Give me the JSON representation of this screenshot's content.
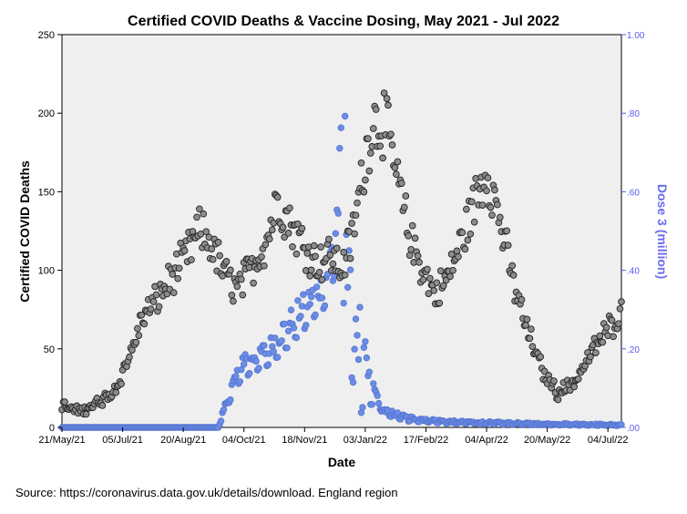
{
  "chart_data": {
    "type": "scatter",
    "title": "Certified COVID Deaths & Vaccine Dosing, May 2021 - Jul 2022",
    "xlabel": "Date",
    "ylabel": "Certified COVID Deaths",
    "y2label": "Dose 3 (million)",
    "ylim": [
      0,
      250
    ],
    "y2lim": [
      0,
      1.0
    ],
    "y_ticks": [
      "0",
      "50",
      "100",
      "150",
      "200",
      "250"
    ],
    "y2_ticks": [
      ".00",
      ".20",
      ".40",
      ".60",
      ".80",
      "1.00"
    ],
    "x_ticks": [
      "21/May/21",
      "05/Jul/21",
      "20/Aug/21",
      "04/Oct/21",
      "18/Nov/21",
      "03/Jan/22",
      "17/Feb/22",
      "04/Apr/22",
      "20/May/22",
      "04/Jul/22"
    ],
    "x_start": "2021-05-21",
    "x_end": "2022-07-10",
    "grid": false,
    "background": "#efefef",
    "deaths_color": "#8c8c8c",
    "dose_color": "#6b8de6",
    "series": [
      {
        "name": "Certified COVID Deaths",
        "axis": "left",
        "anchors": [
          [
            "2021-05-21",
            14
          ],
          [
            "2021-06-01",
            10
          ],
          [
            "2021-06-10",
            13
          ],
          [
            "2021-06-20",
            17
          ],
          [
            "2021-06-30",
            25
          ],
          [
            "2021-07-10",
            45
          ],
          [
            "2021-07-20",
            70
          ],
          [
            "2021-07-31",
            82
          ],
          [
            "2021-08-10",
            95
          ],
          [
            "2021-08-20",
            107
          ],
          [
            "2021-08-31",
            125
          ],
          [
            "2021-09-08",
            118
          ],
          [
            "2021-09-18",
            98
          ],
          [
            "2021-09-28",
            88
          ],
          [
            "2021-10-08",
            100
          ],
          [
            "2021-10-20",
            120
          ],
          [
            "2021-10-28",
            145
          ],
          [
            "2021-11-05",
            132
          ],
          [
            "2021-11-15",
            118
          ],
          [
            "2021-11-26",
            105
          ],
          [
            "2021-12-06",
            110
          ],
          [
            "2021-12-14",
            100
          ],
          [
            "2021-12-22",
            120
          ],
          [
            "2021-12-30",
            160
          ],
          [
            "2022-01-06",
            195
          ],
          [
            "2022-01-15",
            195
          ],
          [
            "2022-01-24",
            160
          ],
          [
            "2022-02-03",
            120
          ],
          [
            "2022-02-13",
            100
          ],
          [
            "2022-02-22",
            85
          ],
          [
            "2022-03-03",
            95
          ],
          [
            "2022-03-12",
            115
          ],
          [
            "2022-03-24",
            145
          ],
          [
            "2022-04-01",
            165
          ],
          [
            "2022-04-10",
            135
          ],
          [
            "2022-04-20",
            95
          ],
          [
            "2022-05-01",
            62
          ],
          [
            "2022-05-13",
            35
          ],
          [
            "2022-05-24",
            22
          ],
          [
            "2022-06-06",
            30
          ],
          [
            "2022-06-18",
            48
          ],
          [
            "2022-06-28",
            60
          ],
          [
            "2022-07-08",
            72
          ]
        ]
      },
      {
        "name": "Dose 3 (million)",
        "axis": "right",
        "upper_anchors": [
          [
            "2021-05-21",
            0.0
          ],
          [
            "2021-09-14",
            0.0
          ],
          [
            "2021-09-22",
            0.1
          ],
          [
            "2021-10-02",
            0.2
          ],
          [
            "2021-10-20",
            0.22
          ],
          [
            "2021-11-06",
            0.3
          ],
          [
            "2021-11-21",
            0.36
          ],
          [
            "2021-12-02",
            0.4
          ],
          [
            "2021-12-10",
            0.56
          ],
          [
            "2021-12-14",
            0.78
          ],
          [
            "2021-12-17",
            0.84
          ],
          [
            "2021-12-21",
            0.62
          ],
          [
            "2021-12-26",
            0.38
          ],
          [
            "2022-01-01",
            0.22
          ],
          [
            "2022-01-07",
            0.12
          ],
          [
            "2022-01-15",
            0.05
          ],
          [
            "2022-02-01",
            0.03
          ],
          [
            "2022-03-01",
            0.018
          ],
          [
            "2022-05-01",
            0.012
          ],
          [
            "2022-07-10",
            0.008
          ]
        ],
        "lower_anchors": [
          [
            "2021-05-21",
            0.0
          ],
          [
            "2021-09-14",
            0.0
          ],
          [
            "2021-09-22",
            0.06
          ],
          [
            "2021-10-02",
            0.12
          ],
          [
            "2021-10-20",
            0.15
          ],
          [
            "2021-11-06",
            0.2
          ],
          [
            "2021-11-21",
            0.26
          ],
          [
            "2021-12-02",
            0.3
          ],
          [
            "2021-12-10",
            0.38
          ],
          [
            "2021-12-14",
            0.4
          ],
          [
            "2021-12-17",
            0.2
          ],
          [
            "2021-12-21",
            0.06
          ],
          [
            "2021-12-26",
            0.02
          ],
          [
            "2022-01-01",
            0.01
          ],
          [
            "2022-01-07",
            0.06
          ],
          [
            "2022-01-15",
            0.03
          ],
          [
            "2022-02-01",
            0.015
          ],
          [
            "2022-03-01",
            0.01
          ],
          [
            "2022-05-01",
            0.006
          ],
          [
            "2022-07-10",
            0.004
          ]
        ]
      }
    ]
  },
  "source_text": "Source: https://coronavirus.data.gov.uk/details/download. England region"
}
